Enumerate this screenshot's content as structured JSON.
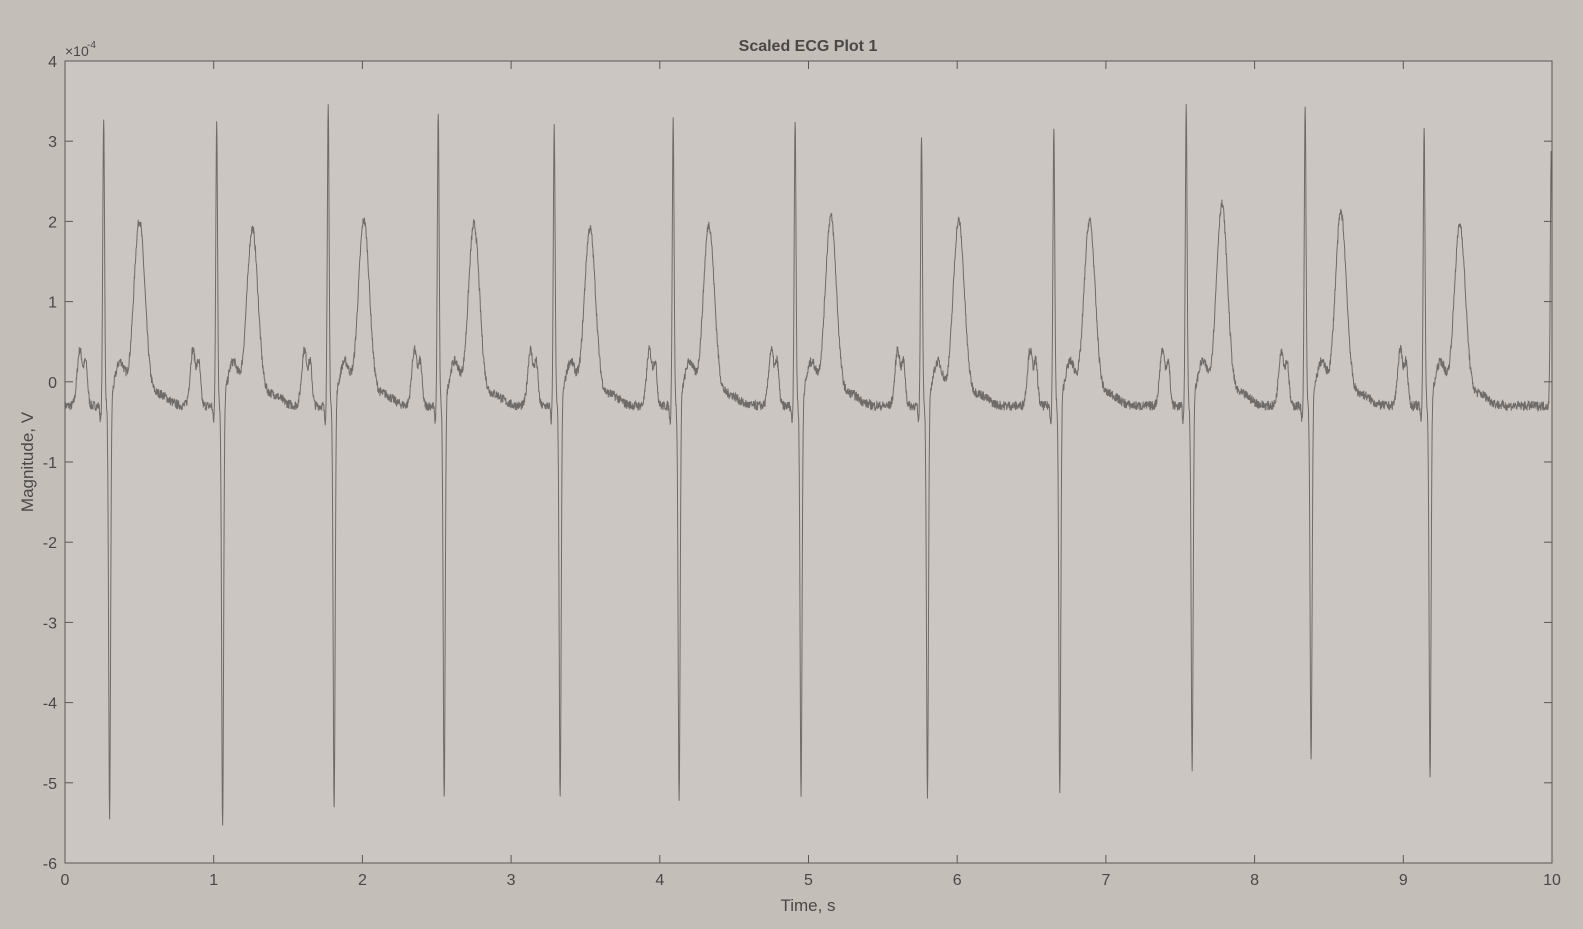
{
  "chart_data": {
    "type": "line",
    "title": "Scaled ECG Plot 1",
    "xlabel": "Time, s",
    "ylabel": "Magnitude, V",
    "y_multiplier_base": "×10",
    "y_multiplier_exponent": "-4",
    "xlim": [
      0,
      10
    ],
    "ylim": [
      -6,
      4
    ],
    "x_ticks": [
      0,
      1,
      2,
      3,
      4,
      5,
      6,
      7,
      8,
      9,
      10
    ],
    "y_ticks": [
      -6,
      -5,
      -4,
      -3,
      -2,
      -1,
      0,
      1,
      2,
      3,
      4
    ],
    "grid": false,
    "colors": {
      "figure_bg": "#c4beb9",
      "axes_bg": "#cbc6c1",
      "line": "#6f6b69",
      "axis": "#5a5756",
      "text": "#4a4746"
    },
    "series": [
      {
        "name": "ECG",
        "baseline": -0.3,
        "beats": [
          {
            "r_time": 0.26,
            "r_peak": 3.2,
            "s_time": 0.3,
            "s_trough": -5.5,
            "t_time": 0.5,
            "t_peak": 2.5
          },
          {
            "r_time": 1.02,
            "r_peak": 3.1,
            "s_time": 1.06,
            "s_trough": -5.6,
            "t_time": 1.26,
            "t_peak": 2.4
          },
          {
            "r_time": 1.77,
            "r_peak": 3.3,
            "s_time": 1.81,
            "s_trough": -5.4,
            "t_time": 2.01,
            "t_peak": 2.5
          },
          {
            "r_time": 2.51,
            "r_peak": 3.25,
            "s_time": 2.55,
            "s_trough": -5.3,
            "t_time": 2.75,
            "t_peak": 2.45
          },
          {
            "r_time": 3.29,
            "r_peak": 3.1,
            "s_time": 3.33,
            "s_trough": -5.3,
            "t_time": 3.53,
            "t_peak": 2.4
          },
          {
            "r_time": 4.09,
            "r_peak": 3.15,
            "s_time": 4.13,
            "s_trough": -5.3,
            "t_time": 4.33,
            "t_peak": 2.45
          },
          {
            "r_time": 4.91,
            "r_peak": 3.15,
            "s_time": 4.95,
            "s_trough": -5.2,
            "t_time": 5.15,
            "t_peak": 2.55
          },
          {
            "r_time": 5.76,
            "r_peak": 3.0,
            "s_time": 5.8,
            "s_trough": -5.25,
            "t_time": 6.01,
            "t_peak": 2.5
          },
          {
            "r_time": 6.65,
            "r_peak": 3.05,
            "s_time": 6.69,
            "s_trough": -5.2,
            "t_time": 6.89,
            "t_peak": 2.5
          },
          {
            "r_time": 7.54,
            "r_peak": 3.3,
            "s_time": 7.58,
            "s_trough": -4.9,
            "t_time": 7.78,
            "t_peak": 2.7
          },
          {
            "r_time": 8.34,
            "r_peak": 3.3,
            "s_time": 8.38,
            "s_trough": -4.8,
            "t_time": 8.58,
            "t_peak": 2.6
          },
          {
            "r_time": 9.14,
            "r_peak": 3.05,
            "s_time": 9.18,
            "s_trough": -5.0,
            "t_time": 9.38,
            "t_peak": 2.45
          }
        ],
        "end_value_at_10s": 2.95
      }
    ]
  }
}
